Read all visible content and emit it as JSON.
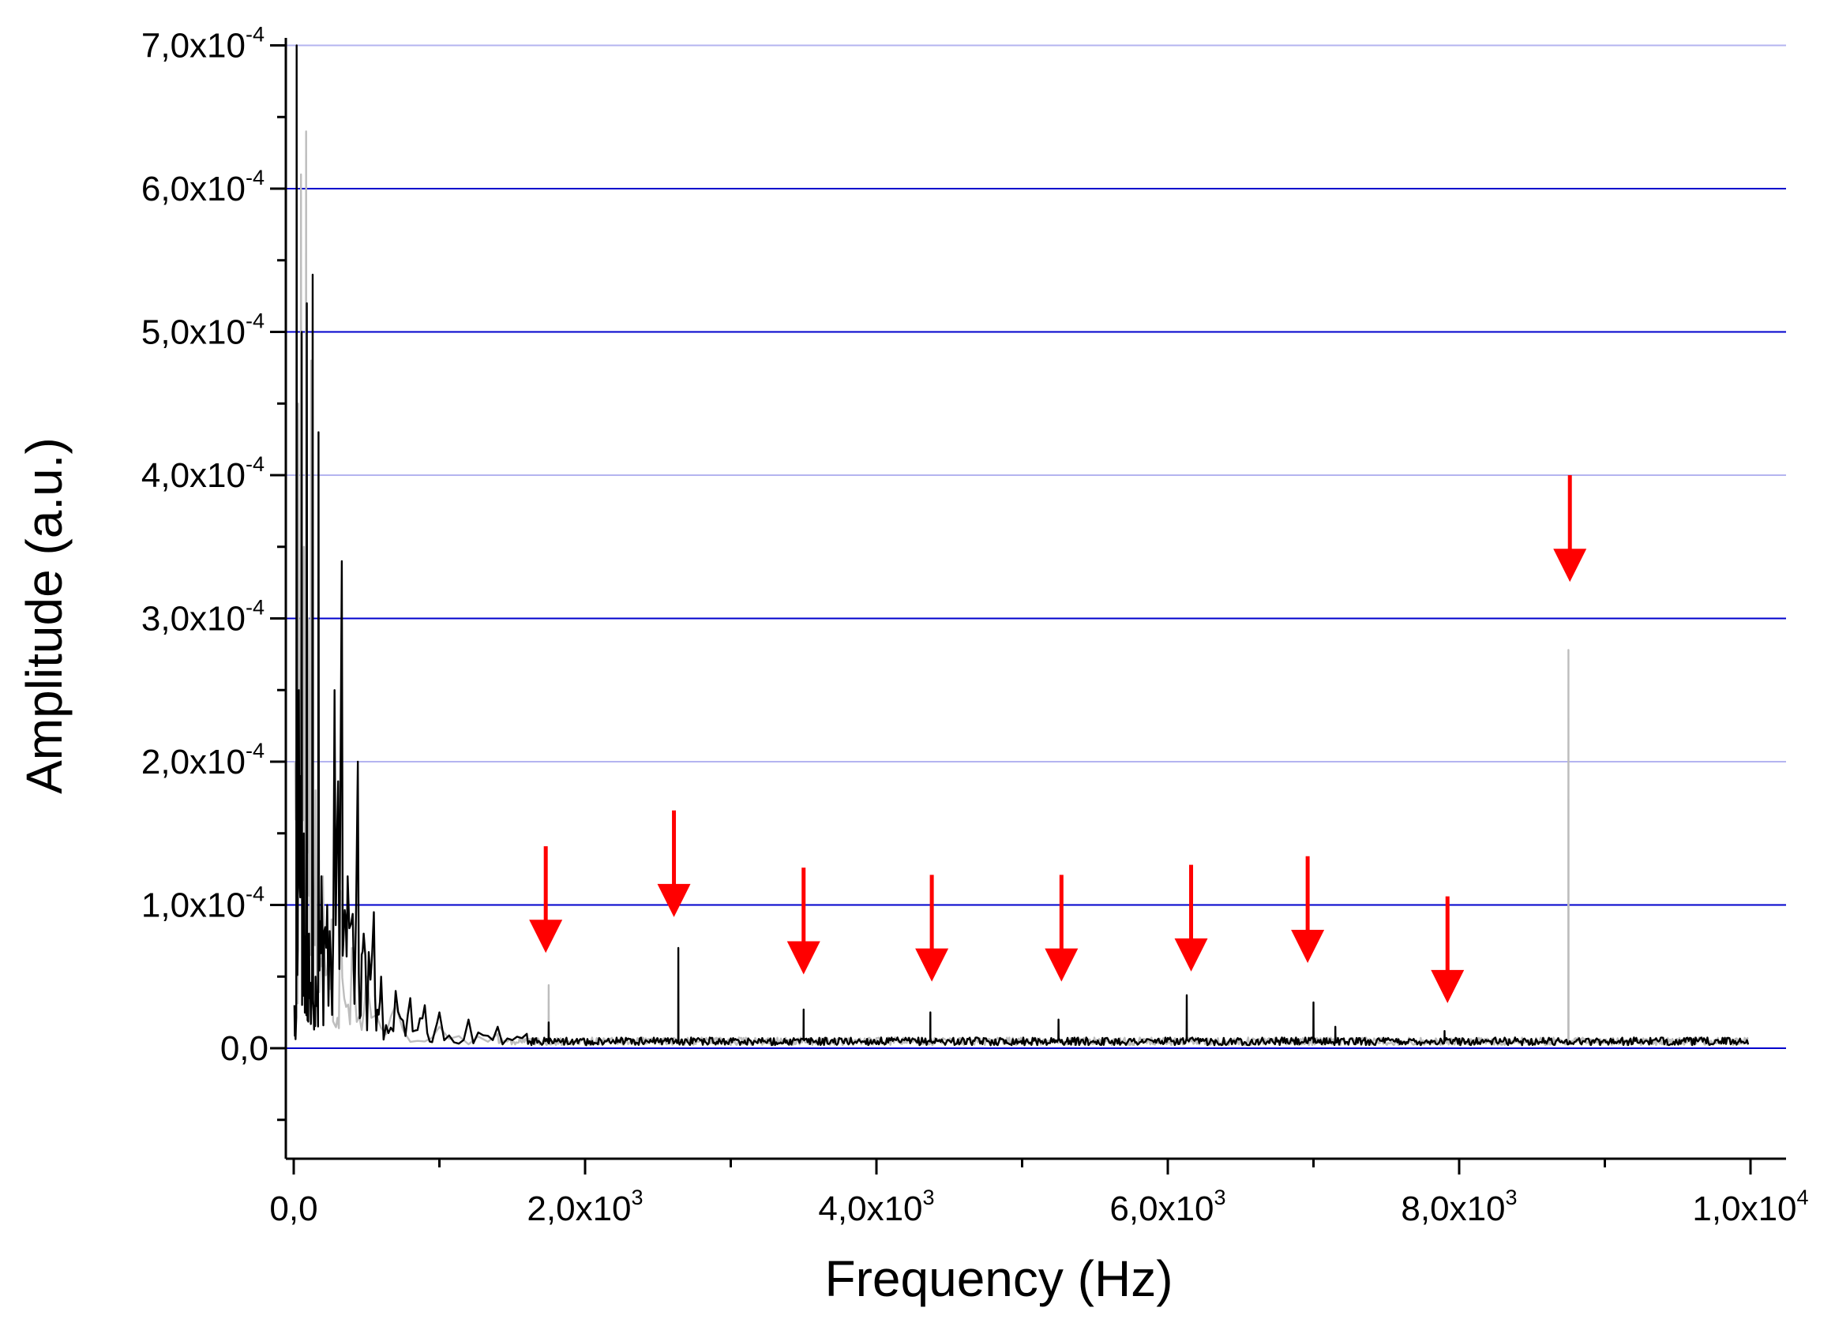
{
  "chart_data": {
    "type": "line",
    "title": "",
    "xlabel": "Frequency (Hz)",
    "ylabel": "Amplitude (a.u.)",
    "xlim": [
      -50,
      10200
    ],
    "ylim": [
      -7.5e-05,
      0.000705
    ],
    "x_ticks": [
      {
        "value": 0,
        "mantissa": "0,0",
        "exp": ""
      },
      {
        "value": 2000,
        "mantissa": "2,0x10",
        "exp": "3"
      },
      {
        "value": 4000,
        "mantissa": "4,0x10",
        "exp": "3"
      },
      {
        "value": 6000,
        "mantissa": "6,0x10",
        "exp": "3"
      },
      {
        "value": 8000,
        "mantissa": "8,0x10",
        "exp": "3"
      },
      {
        "value": 10000,
        "mantissa": "1,0x10",
        "exp": "4"
      }
    ],
    "x_minor_ticks": [
      1000,
      3000,
      5000,
      7000,
      9000
    ],
    "y_ticks": [
      {
        "value": 0,
        "mantissa": "0,0",
        "exp": ""
      },
      {
        "value": 0.0001,
        "mantissa": "1,0x10",
        "exp": "-4"
      },
      {
        "value": 0.0002,
        "mantissa": "2,0x10",
        "exp": "-4"
      },
      {
        "value": 0.0003,
        "mantissa": "3,0x10",
        "exp": "-4"
      },
      {
        "value": 0.0004,
        "mantissa": "4,0x10",
        "exp": "-4"
      },
      {
        "value": 0.0005,
        "mantissa": "5,0x10",
        "exp": "-4"
      },
      {
        "value": 0.0006,
        "mantissa": "6,0x10",
        "exp": "-4"
      },
      {
        "value": 0.0007,
        "mantissa": "7,0x10",
        "exp": "-4"
      }
    ],
    "y_minor_ticks": [
      -5e-05,
      5e-05,
      0.00015,
      0.00025,
      0.00035,
      0.00045,
      0.00055,
      0.00065
    ],
    "gridlines": [
      {
        "value": 0,
        "color": "#0000cc"
      },
      {
        "value": 0.0001,
        "color": "#0000cc"
      },
      {
        "value": 0.0002,
        "color": "#b4b4f0"
      },
      {
        "value": 0.0003,
        "color": "#0000cc"
      },
      {
        "value": 0.0004,
        "color": "#b4b4f0"
      },
      {
        "value": 0.0005,
        "color": "#0000cc"
      },
      {
        "value": 0.0006,
        "color": "#0000cc"
      },
      {
        "value": 0.0007,
        "color": "#b4b4f0"
      }
    ],
    "series": [
      {
        "color": "#bdbdbd",
        "baseline": 6e-06,
        "low_freq_points": [
          [
            10,
            0.0002
          ],
          [
            30,
            0.00045
          ],
          [
            50,
            0.00061
          ],
          [
            70,
            0.00035
          ],
          [
            85,
            0.00064
          ],
          [
            100,
            0.0003
          ],
          [
            120,
            0.00048
          ],
          [
            150,
            0.00018
          ],
          [
            200,
            0.00012
          ],
          [
            260,
            9e-05
          ],
          [
            320,
            0.00011
          ],
          [
            400,
            7e-05
          ],
          [
            500,
            5e-05
          ],
          [
            700,
            3e-05
          ],
          [
            1000,
            1.5e-05
          ],
          [
            1400,
            1e-05
          ]
        ],
        "peaks": [
          [
            1750,
            4.4e-05
          ],
          [
            3500,
            1.2e-05
          ],
          [
            5250,
            1.2e-05
          ],
          [
            7000,
            1.2e-05
          ],
          [
            8750,
            0.000278
          ]
        ]
      },
      {
        "color": "#000000",
        "baseline": 6e-06,
        "low_freq_points": [
          [
            5,
            3e-05
          ],
          [
            20,
            0.0007
          ],
          [
            35,
            0.00025
          ],
          [
            55,
            0.0005
          ],
          [
            70,
            0.00015
          ],
          [
            90,
            0.00052
          ],
          [
            105,
            8e-05
          ],
          [
            130,
            0.00054
          ],
          [
            150,
            5e-05
          ],
          [
            170,
            0.00043
          ],
          [
            190,
            0.00012
          ],
          [
            230,
            0.0001
          ],
          [
            280,
            0.00025
          ],
          [
            330,
            0.00034
          ],
          [
            370,
            0.00012
          ],
          [
            440,
            0.0002
          ],
          [
            480,
            8e-05
          ],
          [
            550,
            9.5e-05
          ],
          [
            600,
            5e-05
          ],
          [
            700,
            4e-05
          ],
          [
            800,
            3.5e-05
          ],
          [
            900,
            3e-05
          ],
          [
            1000,
            2.5e-05
          ],
          [
            1200,
            2e-05
          ],
          [
            1400,
            1.5e-05
          ],
          [
            1600,
            1e-05
          ]
        ],
        "peaks": [
          [
            1750,
            1.8e-05
          ],
          [
            2640,
            7e-05
          ],
          [
            3500,
            2.7e-05
          ],
          [
            4370,
            2.5e-05
          ],
          [
            5250,
            2e-05
          ],
          [
            6130,
            3.7e-05
          ],
          [
            7000,
            3.2e-05
          ],
          [
            7150,
            1.5e-05
          ],
          [
            7900,
            1.2e-05
          ]
        ]
      }
    ],
    "arrows": [
      {
        "x": 1730,
        "y_top": 0.000141,
        "y_tip": 6.65e-05,
        "color": "#ff0000"
      },
      {
        "x": 2610,
        "y_top": 0.000166,
        "y_tip": 9.15e-05,
        "color": "#ff0000"
      },
      {
        "x": 3500,
        "y_top": 0.000126,
        "y_tip": 5.15e-05,
        "color": "#ff0000"
      },
      {
        "x": 4380,
        "y_top": 0.000121,
        "y_tip": 4.65e-05,
        "color": "#ff0000"
      },
      {
        "x": 5270,
        "y_top": 0.000121,
        "y_tip": 4.65e-05,
        "color": "#ff0000"
      },
      {
        "x": 6160,
        "y_top": 0.000128,
        "y_tip": 5.35e-05,
        "color": "#ff0000"
      },
      {
        "x": 6960,
        "y_top": 0.000134,
        "y_tip": 5.95e-05,
        "color": "#ff0000"
      },
      {
        "x": 7920,
        "y_top": 0.000106,
        "y_tip": 3.15e-05,
        "color": "#ff0000"
      },
      {
        "x": 8760,
        "y_top": 0.0004,
        "y_tip": 0.0003255,
        "color": "#ff0000"
      }
    ]
  }
}
